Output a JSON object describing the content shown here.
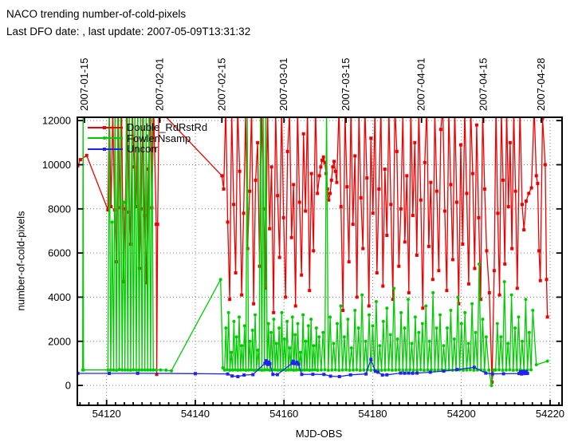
{
  "header": {
    "title": "NACO trending number-of-cold-pixels",
    "subtitle": "Last DFO date: , last update: 2007-05-09T13:31:32"
  },
  "chart_data": {
    "type": "line",
    "title": "NACO trending number-of-cold-pixels",
    "xlabel": "MJD-OBS",
    "ylabel": "number-of-cold-pixels",
    "x_range": [
      54113.4,
      54222.7
    ],
    "y_range": [
      -900,
      12150
    ],
    "x_ticks": [
      54120,
      54140,
      54160,
      54180,
      54200,
      54220
    ],
    "x_minor_step": 2,
    "y_ticks": [
      0,
      2000,
      4000,
      6000,
      8000,
      10000,
      12000
    ],
    "x2_ticks": [
      {
        "mjd": 54115,
        "label": "2007-01-15"
      },
      {
        "mjd": 54132,
        "label": "2007-02-01"
      },
      {
        "mjd": 54146,
        "label": "2007-02-15"
      },
      {
        "mjd": 54160,
        "label": "2007-03-01"
      },
      {
        "mjd": 54174,
        "label": "2007-03-15"
      },
      {
        "mjd": 54191,
        "label": "2007-04-01"
      },
      {
        "mjd": 54205,
        "label": "2007-04-15"
      },
      {
        "mjd": 54218,
        "label": "2007-04-28"
      }
    ],
    "grid": true,
    "grid_color": "#808080",
    "legend_position": "top-left-inside",
    "series": [
      {
        "name": "Double_RdRstRd",
        "color": "#ee0000",
        "marker": "square",
        "segments": [
          {
            "points": [
              [
                54113.5,
                9950
              ],
              [
                54114.1,
                10230
              ],
              [
                54115.5,
                10420
              ],
              [
                54120.3,
                7950
              ]
            ]
          },
          {
            "x_start": 54120.6,
            "x_step": 0.4,
            "y": [
              12600,
              8100,
              12400,
              7950,
              5600,
              12600,
              8050,
              12300,
              4700,
              8000,
              12500,
              7850,
              6400,
              12600,
              9900,
              8100,
              12400,
              5300,
              8000,
              12550,
              7700,
              4650,
              9800,
              12450,
              8050,
              12600
            ]
          },
          {
            "points": [
              [
                54131.2,
                7300
              ],
              [
                54131.3,
                500
              ],
              [
                54131.5,
                7300
              ],
              [
                54131.8,
                12500
              ],
              [
                54146.0,
                9500
              ]
            ]
          },
          {
            "x_start": 54146.4,
            "x_step": 0.45,
            "y": [
              8900,
              12600,
              7400,
              3900,
              12400,
              8200,
              5100,
              12600,
              9700,
              4100,
              7800,
              12300,
              6200,
              8800,
              12600,
              3700,
              9300,
              11000,
              5400,
              12500,
              8000,
              4400,
              12600,
              7100,
              9900,
              3300,
              12400,
              8600,
              5800,
              12600,
              7600,
              4000,
              10600,
              12300,
              6700,
              9100,
              3600,
              12600,
              8300,
              5000,
              11400,
              7900,
              12500,
              4300,
              9600,
              6100,
              12600,
              8700
            ]
          },
          {
            "x_start": 54168.0,
            "x_step": 0.3,
            "y": [
              9500,
              9900,
              10200,
              10350,
              10100,
              9600,
              8900,
              8400,
              8700,
              9300,
              9900,
              10150,
              9700,
              9200
            ]
          },
          {
            "x_start": 54172.4,
            "x_step": 0.45,
            "y": [
              12600,
              8100,
              3400,
              12400,
              9000,
              5600,
              12600,
              7300,
              10400,
              4000,
              12300,
              8500,
              6200,
              12600,
              9400,
              3600,
              11200,
              7800,
              12500,
              5100,
              8900,
              12600,
              4500,
              9800,
              6800,
              12400,
              8200,
              3900,
              12600,
              10600,
              5400,
              8000,
              12300,
              6500,
              9500,
              4200,
              12600,
              7700,
              11000,
              5900,
              12500,
              8400,
              3500,
              10100,
              12600,
              6300,
              9200,
              4800,
              12400,
              8800,
              5200,
              11600
            ]
          },
          {
            "x_start": 54195.8,
            "x_step": 0.45,
            "y": [
              12600,
              7900,
              4300,
              12400,
              9100,
              5700,
              12600,
              8300,
              3700,
              10900,
              6400,
              12500,
              8700,
              4600,
              12600,
              9600,
              5300,
              11800,
              7600,
              3900,
              12400,
              8900,
              6100
            ]
          },
          {
            "points": [
              [
                54206.3,
                4200
              ],
              [
                54206.9,
                150
              ],
              [
                54207.4,
                5200
              ]
            ]
          },
          {
            "x_start": 54207.8,
            "x_step": 0.4,
            "y": [
              12600,
              7800,
              4100,
              12400,
              9300,
              5500,
              12600,
              8100,
              11000,
              6200,
              12500,
              8800,
              4400
            ]
          },
          {
            "points": [
              [
                54213.2,
                12600
              ],
              [
                54213.7,
                8200
              ],
              [
                54214.1,
                7050
              ],
              [
                54214.6,
                8350
              ],
              [
                54215.2,
                8700
              ],
              [
                54215.8,
                8950
              ],
              [
                54216.4,
                12600
              ],
              [
                54216.9,
                9500
              ],
              [
                54217.2,
                9150
              ],
              [
                54217.5,
                6100
              ],
              [
                54217.8,
                4750
              ],
              [
                54218.3,
                12100
              ],
              [
                54218.9,
                10000
              ],
              [
                54219.2,
                4800
              ],
              [
                54219.4,
                3100
              ]
            ]
          }
        ]
      },
      {
        "name": "FowlerNsamp",
        "color": "#00cc00",
        "marker": "circle",
        "segments": [
          {
            "points": [
              [
                54114.6,
                700
              ],
              [
                54114.7,
                12600
              ],
              [
                54114.8,
                700
              ]
            ]
          },
          {
            "x_start": 54120.3,
            "x_step": 0.32,
            "y": [
              700,
              12600,
              700,
              7400,
              700,
              12600,
              680,
              12600,
              720,
              12600,
              700,
              8300,
              700,
              12600,
              700,
              12600,
              690,
              12600,
              710,
              12600,
              700,
              12600,
              700,
              12600,
              700,
              12600,
              700,
              12600,
              700,
              12600,
              700,
              12600,
              700
            ]
          },
          {
            "points": [
              [
                54131.2,
                700
              ],
              [
                54132.2,
                700
              ],
              [
                54133.4,
                690
              ],
              [
                54134.6,
                660
              ],
              [
                54145.7,
                4800
              ],
              [
                54146.2,
                800
              ]
            ]
          },
          {
            "x_start": 54146.6,
            "x_step": 0.3,
            "y": [
              700,
              2600,
              710,
              3300,
              690,
              1500,
              700,
              2900,
              710,
              2200,
              690,
              3100,
              700,
              1800,
              710,
              2700,
              690,
              12600,
              700,
              2000,
              710,
              2500,
              690,
              3200,
              700,
              1600,
              710,
              12600,
              690,
              12600,
              700,
              12600,
              710,
              2800,
              690,
              2400,
              700,
              3000,
              710,
              1900,
              690,
              2600,
              700,
              3300,
              710,
              2100,
              690,
              2900,
              700,
              1700,
              710,
              3100,
              690,
              2300,
              700,
              2800,
              710,
              1500,
              690,
              3200,
              700,
              2000,
              710,
              2700,
              690,
              3000,
              700,
              1800,
              710,
              2600,
              690,
              2200
            ]
          },
          {
            "x_start": 54168.4,
            "x_step": 0.4,
            "y": [
              700,
              2400,
              710,
              12600,
              690,
              3100,
              700,
              1900,
              710,
              2800,
              690,
              3600,
              700,
              2200,
              710,
              3000,
              690,
              1700,
              700,
              3400,
              710,
              2600,
              690,
              4100,
              700,
              2000,
              710,
              3200,
              690,
              2700,
              700,
              3800,
              710,
              1800,
              690,
              2900,
              700,
              3500,
              710,
              2300,
              690,
              4400,
              700,
              2100,
              710,
              3300,
              690,
              2600,
              700,
              3900,
              710,
              1900,
              690,
              3100,
              700,
              2400,
              710,
              2800,
              690,
              3600,
              700,
              2000,
              710,
              4200,
              690,
              2600,
              700,
              3200,
              710,
              1800
            ]
          },
          {
            "x_start": 54196.4,
            "x_step": 0.4,
            "y": [
              700,
              2600,
              710,
              3400,
              690,
              2100,
              700,
              4000,
              710,
              2800,
              690,
              3300,
              700,
              1900,
              710,
              3700,
              690,
              2400,
              700,
              5500,
              710,
              3000,
              690,
              2200
            ]
          },
          {
            "points": [
              [
                54206.2,
                700
              ],
              [
                54206.8,
                0
              ],
              [
                54207.3,
                700
              ]
            ]
          },
          {
            "x_start": 54207.7,
            "x_step": 0.4,
            "y": [
              700,
              2800,
              710,
              2200,
              690,
              4700,
              700,
              1900,
              710,
              4100,
              690,
              2600,
              700,
              3100,
              710,
              2000,
              690,
              3900,
              700,
              2400,
              710,
              3400
            ]
          },
          {
            "points": [
              [
                54216.9,
                940
              ],
              [
                54219.4,
                1100
              ]
            ]
          }
        ]
      },
      {
        "name": "Uncorr",
        "color": "#2222ee",
        "marker": "square",
        "segments": [
          {
            "points": [
              [
                54113.5,
                545
              ],
              [
                54120.6,
                545
              ],
              [
                54127.0,
                550
              ],
              [
                54140.0,
                535
              ],
              [
                54147.3,
                520
              ],
              [
                54148.3,
                430
              ],
              [
                54149.6,
                400
              ],
              [
                54151.0,
                470
              ],
              [
                54153.0,
                490
              ],
              [
                54155.7,
                1000
              ],
              [
                54156.0,
                1120
              ],
              [
                54156.3,
                950
              ],
              [
                54156.6,
                1060
              ],
              [
                54156.8,
                980
              ],
              [
                54157.5,
                500
              ],
              [
                54158.5,
                490
              ],
              [
                54161.8,
                1000
              ],
              [
                54162.1,
                1100
              ],
              [
                54162.5,
                990
              ],
              [
                54162.9,
                1050
              ],
              [
                54163.3,
                960
              ],
              [
                54164.0,
                500
              ],
              [
                54166.5,
                505
              ],
              [
                54169.0,
                500
              ],
              [
                54170.5,
                420
              ],
              [
                54172.5,
                400
              ],
              [
                54175.0,
                480
              ],
              [
                54178.5,
                520
              ],
              [
                54179.6,
                1180
              ],
              [
                54180.6,
                640
              ],
              [
                54181.2,
                600
              ],
              [
                54182.2,
                470
              ],
              [
                54183.2,
                480
              ],
              [
                54186.3,
                560
              ],
              [
                54187.2,
                555
              ],
              [
                54188.1,
                560
              ],
              [
                54189.0,
                555
              ],
              [
                54190.0,
                560
              ],
              [
                54193.0,
                600
              ],
              [
                54196.0,
                650
              ],
              [
                54199.0,
                720
              ],
              [
                54202.9,
                820
              ],
              [
                54205.5,
                560
              ],
              [
                54207.0,
                520
              ],
              [
                54209.5,
                530
              ],
              [
                54213.0,
                540
              ],
              [
                54213.3,
                620
              ],
              [
                54213.6,
                520
              ],
              [
                54213.9,
                640
              ],
              [
                54214.3,
                540
              ],
              [
                54214.6,
                630
              ],
              [
                54214.9,
                545
              ]
            ]
          }
        ]
      }
    ]
  }
}
